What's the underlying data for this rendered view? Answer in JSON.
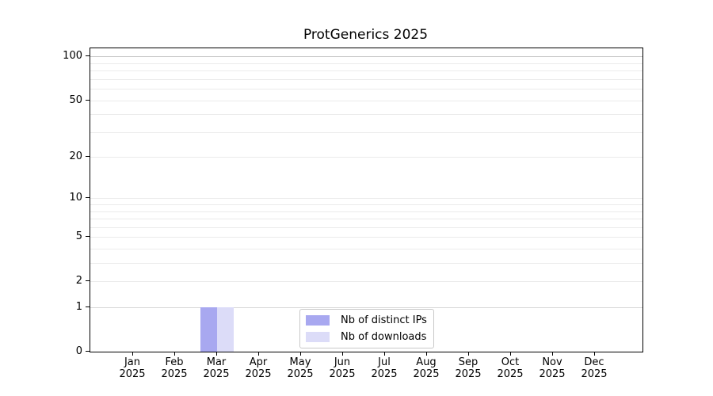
{
  "chart_data": {
    "type": "bar",
    "title": "ProtGenerics 2025",
    "x_categories": [
      "Jan",
      "Feb",
      "Mar",
      "Apr",
      "May",
      "Jun",
      "Jul",
      "Aug",
      "Sep",
      "Oct",
      "Nov",
      "Dec"
    ],
    "x_sub_label": "2025",
    "series": [
      {
        "name": "Nb of distinct IPs",
        "color": "#a8a8f0",
        "values": [
          0,
          0,
          1,
          0,
          0,
          0,
          0,
          0,
          0,
          0,
          0,
          0
        ]
      },
      {
        "name": "Nb of downloads",
        "color": "#dcdcf8",
        "values": [
          0,
          0,
          1,
          0,
          0,
          0,
          0,
          0,
          0,
          0,
          0,
          0
        ]
      }
    ],
    "yscale": "log1p",
    "ylim": [
      0,
      114
    ],
    "yticks": [
      0,
      1,
      2,
      5,
      10,
      20,
      50,
      100
    ],
    "gridlines": [
      1,
      2,
      3,
      4,
      5,
      6,
      7,
      8,
      9,
      10,
      20,
      30,
      40,
      50,
      60,
      70,
      80,
      90,
      100
    ],
    "grid": "on",
    "legend_position": "lower center",
    "colors": {
      "grid_minor": "#ebebeb",
      "grid_unit": "#d8d8d8",
      "grid_top": "#c6c6c6",
      "axis": "#000000"
    }
  }
}
